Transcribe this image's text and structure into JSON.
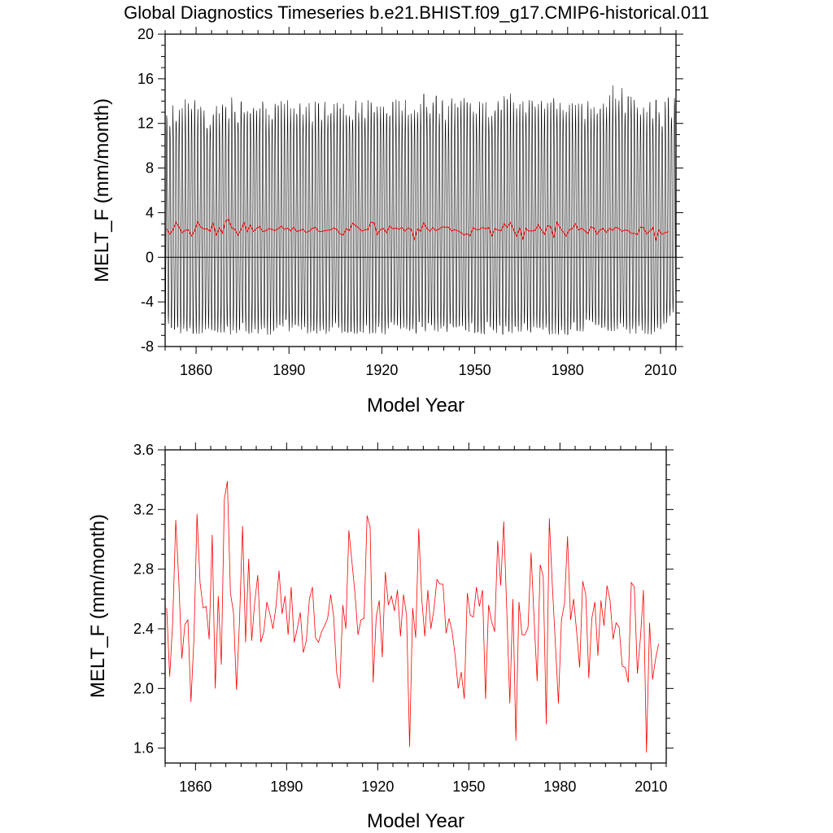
{
  "figure": {
    "title": "Global Diagnostics Timeseries b.e21.BHIST.f09_g17.CMIP6-historical.011"
  },
  "chart_data": [
    {
      "type": "line",
      "xlabel": "Model Year",
      "ylabel": "MELT_F (mm/month)",
      "xlim": [
        1850,
        2015
      ],
      "ylim": [
        -8,
        20
      ],
      "xticks": [
        1860,
        1890,
        1920,
        1950,
        1980,
        2010
      ],
      "yticks": [
        -8,
        -4,
        0,
        4,
        8,
        12,
        16,
        20
      ],
      "grid": false,
      "reference_line": 0,
      "series": [
        {
          "role": "monthly",
          "color": "#000000",
          "envelope": {
            "x": [
              1850,
              1855,
              1860,
              1865,
              1870,
              1875,
              1880,
              1885,
              1890,
              1895,
              1900,
              1905,
              1910,
              1915,
              1920,
              1925,
              1930,
              1935,
              1940,
              1945,
              1950,
              1955,
              1960,
              1965,
              1970,
              1975,
              1980,
              1985,
              1990,
              1995,
              2000,
              2005,
              2010,
              2015
            ],
            "max": [
              13.5,
              15.0,
              14.5,
              14.0,
              14.8,
              15.0,
              14.5,
              14.2,
              14.8,
              14.6,
              14.3,
              14.8,
              15.0,
              14.6,
              15.4,
              14.5,
              14.8,
              15.6,
              14.6,
              14.8,
              14.5,
              14.5,
              15.4,
              14.7,
              14.5,
              14.8,
              15.2,
              14.5,
              14.7,
              16.0,
              15.3,
              14.7,
              14.5,
              15.2
            ],
            "min": [
              -6.2,
              -7.2,
              -7.5,
              -7.0,
              -7.3,
              -7.4,
              -7.2,
              -7.4,
              -7.0,
              -7.2,
              -7.3,
              -7.2,
              -7.4,
              -7.2,
              -7.3,
              -7.2,
              -7.5,
              -7.0,
              -7.2,
              -7.3,
              -7.2,
              -7.3,
              -7.4,
              -7.2,
              -7.1,
              -7.3,
              -7.4,
              -7.0,
              -7.2,
              -7.1,
              -7.2,
              -7.3,
              -7.3,
              -5.5
            ]
          }
        },
        {
          "role": "annual_mean",
          "color": "#ff0000",
          "x_start": 1850,
          "x_step": 1,
          "values": [
            2.54,
            2.08,
            2.45,
            3.13,
            2.72,
            2.2,
            2.43,
            2.46,
            1.91,
            2.34,
            3.17,
            2.71,
            2.54,
            2.55,
            2.33,
            3.03,
            2.0,
            2.62,
            2.16,
            3.27,
            3.39,
            2.64,
            2.51,
            1.99,
            2.46,
            3.09,
            2.31,
            2.87,
            2.32,
            2.58,
            2.76,
            2.31,
            2.38,
            2.58,
            2.5,
            2.4,
            2.55,
            2.79,
            2.5,
            2.62,
            2.36,
            2.68,
            2.31,
            2.4,
            2.51,
            2.24,
            2.32,
            2.6,
            2.68,
            2.34,
            2.31,
            2.38,
            2.42,
            2.47,
            2.63,
            2.48,
            2.1,
            2.0,
            2.56,
            2.4,
            3.06,
            2.85,
            2.64,
            2.36,
            2.46,
            2.47,
            3.16,
            3.08,
            2.04,
            2.48,
            2.59,
            2.21,
            2.78,
            2.56,
            2.62,
            2.52,
            2.66,
            2.35,
            2.63,
            2.49,
            1.61,
            2.54,
            2.34,
            3.07,
            2.6,
            2.35,
            2.66,
            2.4,
            2.53,
            2.73,
            2.7,
            2.7,
            2.37,
            2.47,
            2.38,
            2.22,
            2.0,
            2.11,
            1.93,
            2.64,
            2.49,
            2.48,
            2.68,
            2.55,
            2.66,
            1.93,
            2.56,
            2.45,
            2.38,
            2.99,
            2.69,
            3.12,
            2.52,
            1.9,
            2.6,
            1.65,
            2.58,
            2.36,
            2.36,
            2.41,
            2.91,
            2.46,
            2.05,
            2.83,
            2.75,
            1.76,
            3.14,
            2.69,
            2.3,
            1.9,
            2.46,
            2.57,
            3.02,
            2.46,
            2.6,
            2.38,
            2.14,
            2.72,
            2.63,
            2.07,
            2.47,
            2.58,
            2.22,
            2.59,
            2.42,
            2.69,
            2.59,
            2.33,
            2.44,
            2.41,
            2.15,
            2.14,
            2.04,
            2.71,
            2.68,
            2.1,
            2.34,
            2.66,
            1.57,
            2.44,
            2.06,
            2.2,
            2.3
          ]
        }
      ]
    },
    {
      "type": "line",
      "xlabel": "Model Year",
      "ylabel": "MELT_F (mm/month)",
      "xlim": [
        1850,
        2015
      ],
      "ylim": [
        1.5,
        3.6
      ],
      "xticks": [
        1860,
        1890,
        1920,
        1950,
        1980,
        2010
      ],
      "yticks": [
        1.6,
        2.0,
        2.4,
        2.8,
        3.2,
        3.6
      ],
      "grid": false,
      "series": [
        {
          "role": "annual_mean",
          "color": "#ff0000",
          "values_from": "chart_data.0.series.1.values"
        }
      ]
    }
  ]
}
